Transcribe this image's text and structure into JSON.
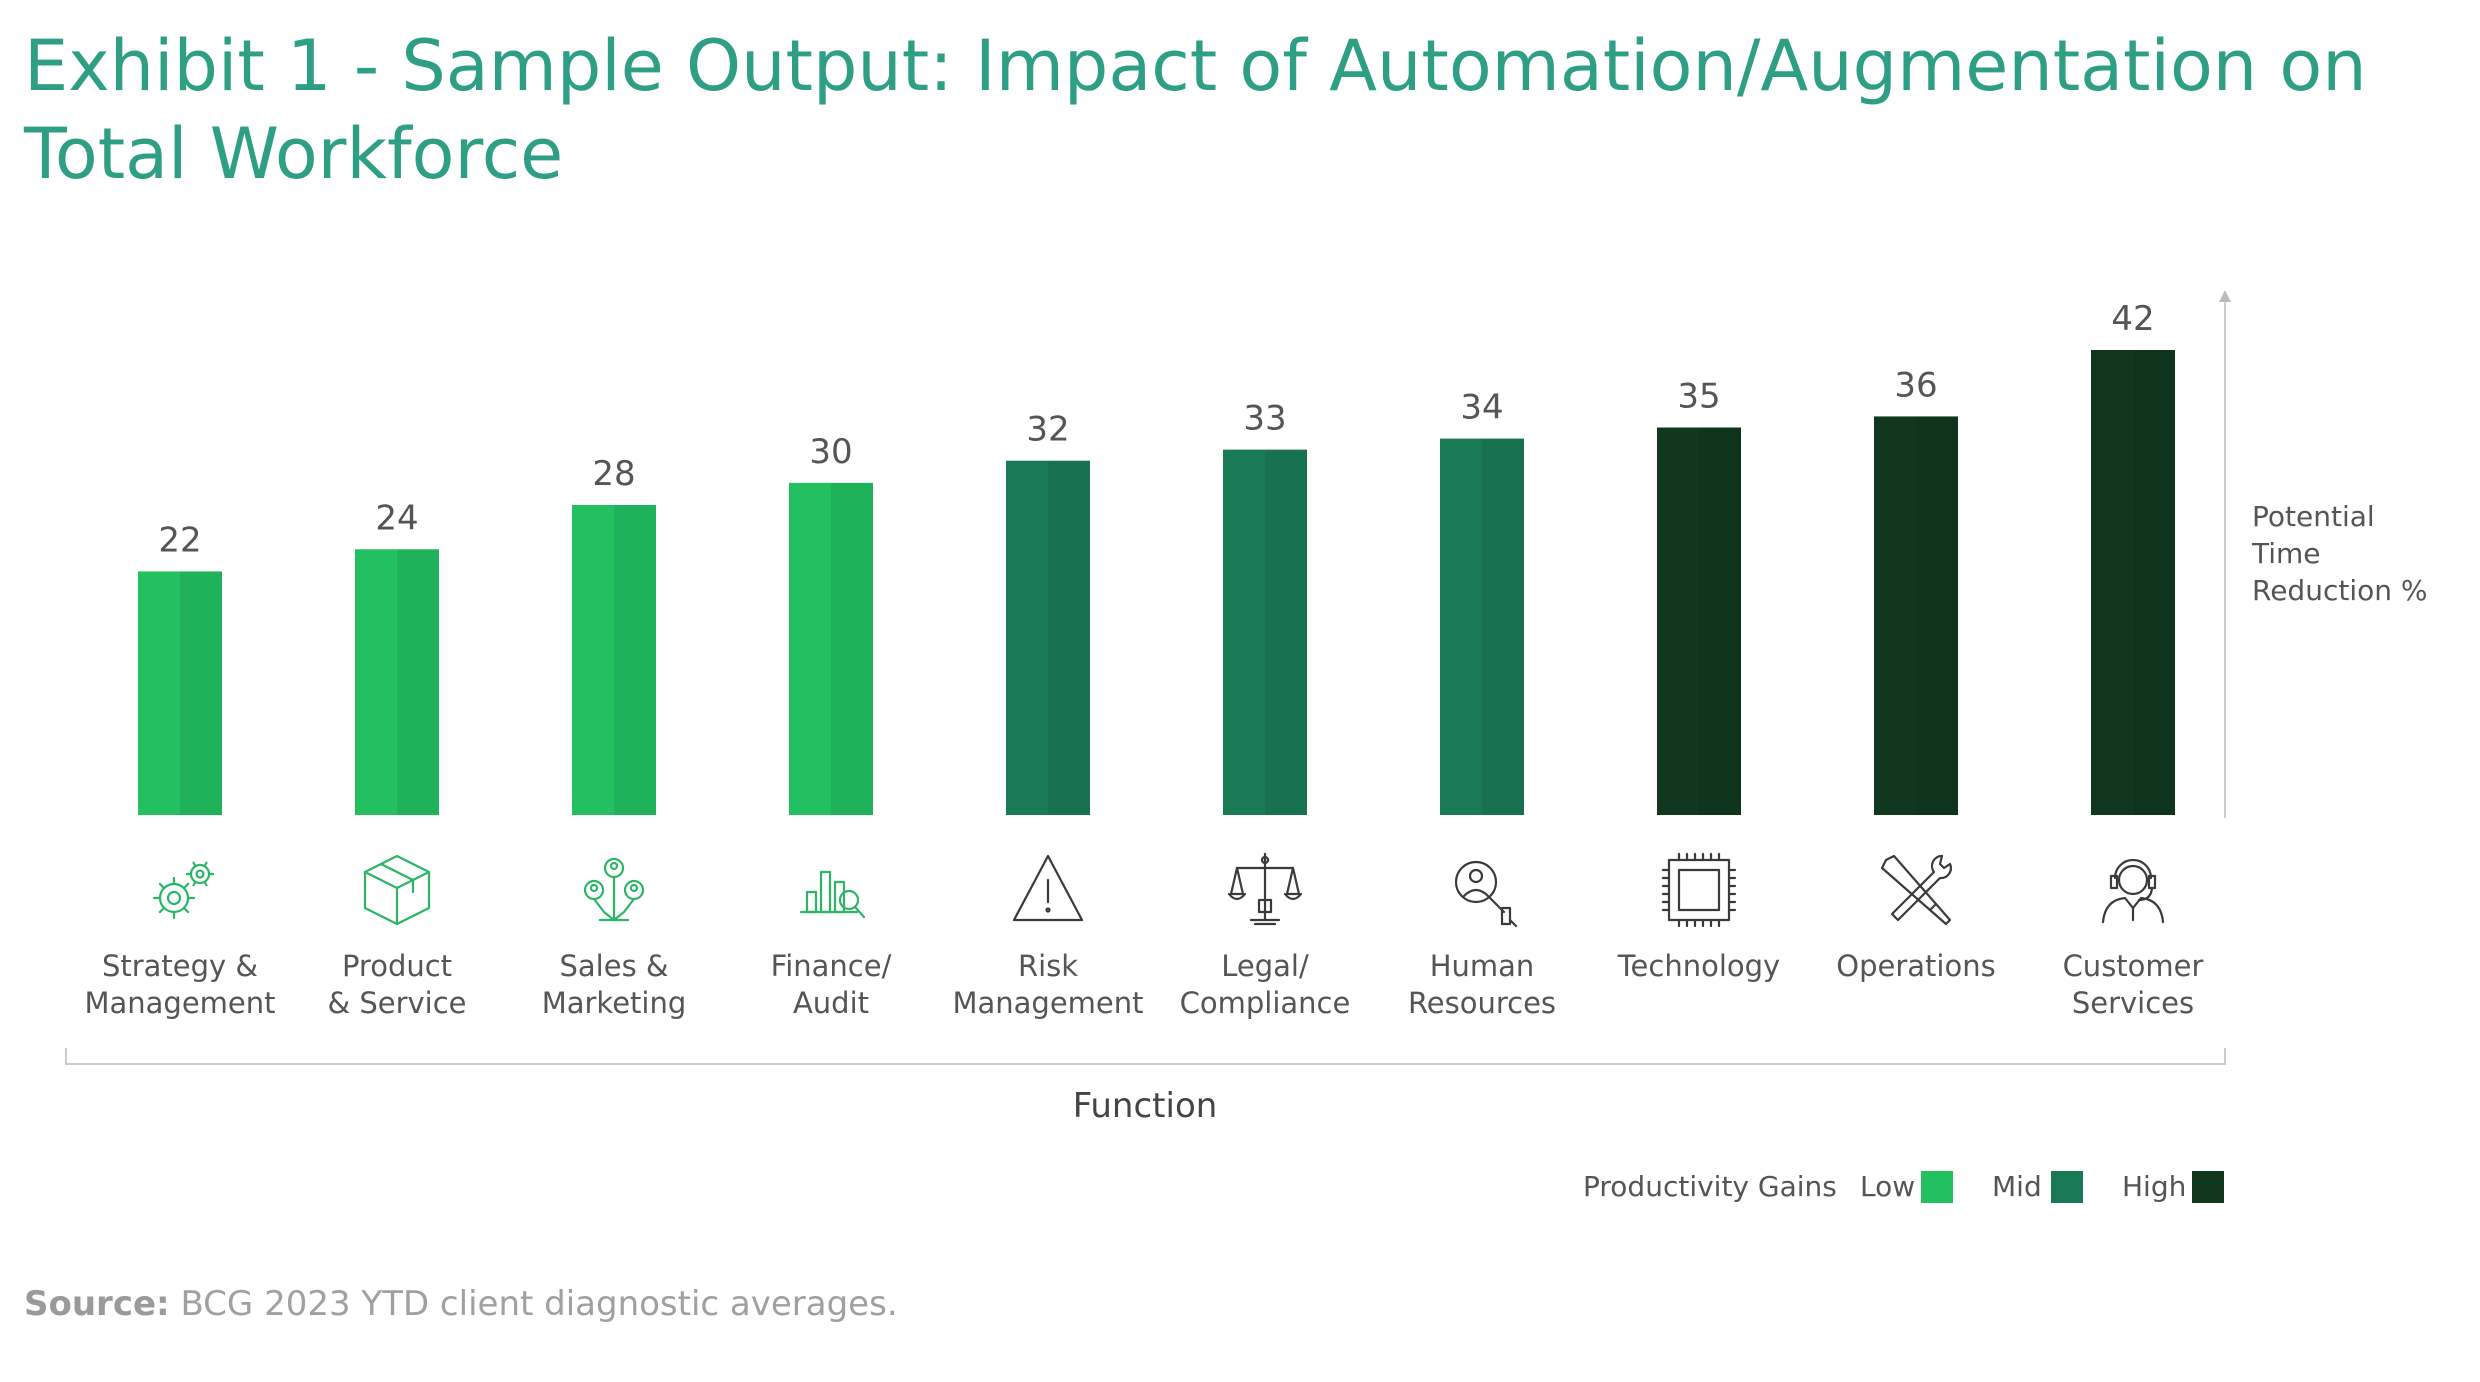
{
  "title": "Exhibit 1 - Sample Output: Impact of Automation/Augmentation on Total Workforce",
  "source": {
    "label": "Source:",
    "text": "BCG 2023 YTD client diagnostic averages."
  },
  "colors": {
    "title": "#2e9e84",
    "low": "#22c061",
    "mid": "#1a7a55",
    "high": "#11381f",
    "text": "#555555",
    "axis": "#cccccc"
  },
  "chart_data": {
    "type": "bar",
    "categories": [
      [
        "Strategy &",
        "Management"
      ],
      [
        "Product",
        "& Service"
      ],
      [
        "Sales &",
        "Marketing"
      ],
      [
        "Finance/",
        "Audit"
      ],
      [
        "Risk",
        "Management"
      ],
      [
        "Legal/",
        "Compliance"
      ],
      [
        "Human",
        "Resources"
      ],
      [
        "Technology"
      ],
      [
        "Operations"
      ],
      [
        "Customer",
        "Services"
      ]
    ],
    "values": [
      22,
      24,
      28,
      30,
      32,
      33,
      34,
      35,
      36,
      42
    ],
    "levels": [
      "Low",
      "Low",
      "Low",
      "Low",
      "Mid",
      "Mid",
      "Mid",
      "High",
      "High",
      "High"
    ],
    "icons": [
      "gears-icon",
      "box-icon",
      "people-network-icon",
      "bar-chart-magnifier-icon",
      "warning-triangle-icon",
      "scales-icon",
      "person-search-icon",
      "chip-icon",
      "tools-icon",
      "headset-agent-icon"
    ],
    "xlabel": "Function",
    "ylabel": [
      "Potential",
      "Time",
      "Reduction %"
    ],
    "ylim": [
      0,
      42
    ],
    "grid": false,
    "legend": {
      "title": "Productivity Gains",
      "placement": "bottom-right",
      "items": [
        {
          "label": "Low",
          "color": "#22c061"
        },
        {
          "label": "Mid",
          "color": "#1a7a55"
        },
        {
          "label": "High",
          "color": "#11381f"
        }
      ]
    }
  }
}
